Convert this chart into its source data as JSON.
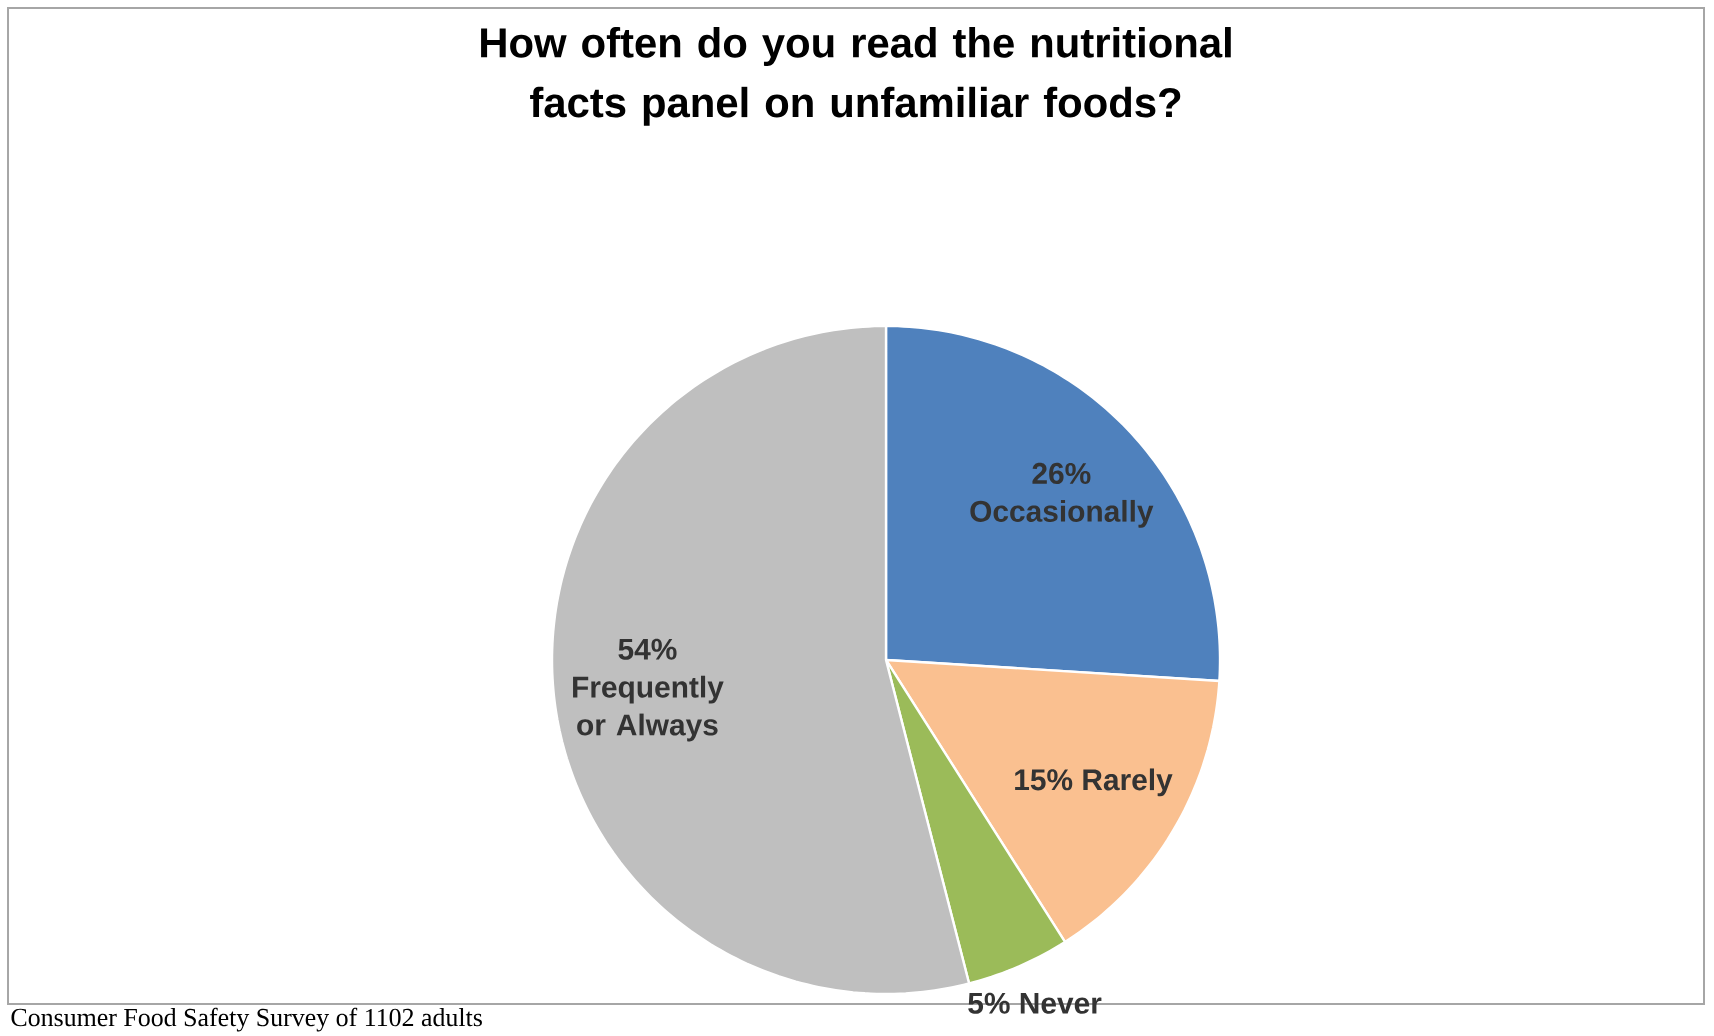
{
  "chart_data": {
    "type": "pie",
    "title": "How often do you read the nutritional facts panel on unfamiliar foods?",
    "categories": [
      "Occasionally",
      "Rarely",
      "Never",
      "Frequently or Always"
    ],
    "values": [
      26,
      15,
      5,
      54
    ],
    "value_labels": [
      "26%",
      "15%",
      "5%",
      "54%"
    ],
    "colors": [
      "#4f81bd",
      "#fac090",
      "#9bbb59",
      "#bfbfbf"
    ],
    "annotations": [
      "Consumer Food Safety Survey of 1102 adults"
    ]
  }
}
